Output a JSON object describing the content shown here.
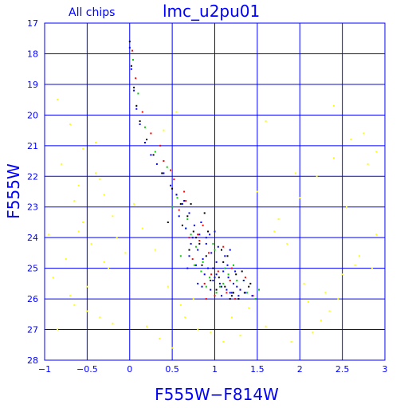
{
  "chart_data": {
    "type": "scatter",
    "title": "lmc_u2pu01",
    "subtitle": "All chips",
    "xlabel": "F555W−F814W",
    "ylabel": "F555W",
    "xlim": [
      -1,
      3
    ],
    "ylim": [
      28,
      17
    ],
    "y_inverted": true,
    "grid": true,
    "x_ticks": [
      -1,
      -0.5,
      0,
      0.5,
      1,
      1.5,
      2,
      2.5,
      3
    ],
    "x_tick_labels": [
      "−1",
      "−0.5",
      "0",
      "0.5",
      "1",
      "1.5",
      "2",
      "2.5",
      "3"
    ],
    "y_ticks": [
      17,
      18,
      19,
      20,
      21,
      22,
      23,
      24,
      25,
      26,
      27,
      28
    ],
    "y_tick_labels": [
      "17",
      "18",
      "19",
      "20",
      "21",
      "22",
      "23",
      "24",
      "25",
      "26",
      "27",
      "28"
    ],
    "colors": {
      "axes": "#0000ff",
      "grid": "#0000ff",
      "chip_yellow": "#ffff00",
      "chip_black": "#000000",
      "chip_red": "#ff0000",
      "chip_green": "#00cc00",
      "chip_blue": "#0000ff"
    },
    "series": [
      {
        "color": "#ffff00",
        "x": [
          -0.85,
          -0.7,
          -0.55,
          -0.4,
          -0.3,
          -0.2,
          -0.6,
          -0.45,
          -0.75,
          -0.25,
          -0.9,
          -0.5,
          -0.35,
          -0.65,
          -0.15,
          -0.8,
          -0.4,
          -0.55,
          -0.3,
          -0.7,
          -0.5,
          -0.2,
          -0.95,
          -0.6,
          0.2,
          0.35,
          0.5,
          0.65,
          0.8,
          1.3,
          1.6,
          1.9,
          2.1,
          2.3,
          2.5,
          2.7,
          2.9,
          1.75,
          2.0,
          2.2,
          2.4,
          2.6,
          2.8,
          1.5,
          1.85,
          2.05,
          2.35,
          2.55,
          2.75,
          1.7,
          2.15,
          2.45,
          2.65,
          2.85,
          1.95,
          2.25,
          0.3,
          0.45,
          0.6,
          1.4,
          1.2,
          0.95,
          0.15,
          0.05,
          -0.05,
          0.4,
          0.55,
          1.6,
          2.4,
          2.9,
          -0.85,
          -0.65,
          -0.35,
          1.1,
          0.75
        ],
        "y": [
          19.5,
          20.3,
          21.1,
          21.9,
          22.6,
          23.3,
          23.8,
          24.2,
          24.7,
          25.0,
          25.3,
          25.6,
          22.1,
          22.8,
          24.0,
          21.6,
          20.9,
          23.5,
          24.8,
          25.9,
          26.4,
          26.8,
          23.9,
          22.3,
          26.9,
          27.3,
          27.6,
          26.6,
          27.0,
          27.2,
          26.9,
          27.4,
          26.1,
          25.8,
          25.2,
          24.6,
          23.9,
          23.4,
          22.7,
          22.0,
          21.4,
          20.8,
          21.6,
          22.5,
          24.2,
          25.5,
          26.4,
          23.0,
          20.6,
          23.8,
          27.1,
          26.0,
          24.9,
          25.0,
          21.9,
          26.7,
          24.4,
          25.6,
          26.2,
          26.3,
          26.6,
          27.1,
          23.7,
          22.9,
          24.5,
          20.5,
          19.9,
          20.2,
          19.7,
          21.2,
          27.0,
          26.2,
          26.6,
          27.4,
          26.0
        ]
      },
      {
        "color": "#000000",
        "x": [
          0.0,
          0.02,
          0.05,
          0.08,
          0.12,
          0.2,
          0.28,
          0.38,
          0.5,
          0.6,
          0.68,
          0.75,
          0.82,
          0.9,
          0.98,
          1.05,
          1.12,
          1.2,
          1.28,
          1.35,
          1.42,
          0.45,
          0.55,
          0.7,
          0.85,
          0.95,
          1.1,
          1.25,
          1.4,
          0.62,
          0.78,
          0.92,
          1.02,
          1.18,
          1.32,
          0.72,
          0.88,
          1.08,
          1.22,
          1.15
        ],
        "y": [
          17.6,
          18.4,
          19.1,
          19.7,
          20.2,
          20.8,
          21.3,
          21.9,
          22.4,
          22.9,
          23.3,
          23.8,
          24.2,
          24.6,
          25.0,
          25.3,
          25.6,
          25.9,
          26.0,
          25.8,
          25.5,
          23.5,
          22.6,
          24.4,
          24.9,
          25.4,
          24.8,
          25.2,
          25.6,
          23.6,
          24.0,
          23.8,
          25.7,
          26.0,
          25.1,
          22.9,
          23.2,
          24.4,
          25.8,
          24.6
        ]
      },
      {
        "color": "#ff0000",
        "x": [
          0.03,
          0.07,
          0.15,
          0.25,
          0.4,
          0.52,
          0.66,
          0.8,
          0.93,
          1.04,
          1.18,
          1.3,
          1.45,
          0.58,
          0.74,
          0.88,
          1.0,
          1.14,
          1.24,
          0.36,
          0.48,
          0.64,
          0.82,
          0.96,
          1.1,
          1.36,
          0.7,
          0.86,
          1.2,
          0.9
        ],
        "y": [
          17.9,
          18.8,
          19.9,
          20.6,
          21.5,
          22.1,
          22.8,
          23.9,
          24.5,
          25.1,
          25.4,
          25.7,
          25.9,
          23.1,
          24.7,
          25.5,
          25.9,
          25.8,
          26.0,
          21.0,
          21.8,
          22.5,
          24.1,
          25.2,
          24.3,
          25.3,
          24.0,
          23.6,
          25.0,
          26.0
        ]
      },
      {
        "color": "#00cc00",
        "x": [
          0.04,
          0.1,
          0.18,
          0.3,
          0.44,
          0.56,
          0.68,
          0.78,
          0.86,
          0.94,
          1.06,
          1.16,
          1.26,
          1.38,
          1.52,
          0.6,
          0.76,
          0.9,
          1.0,
          1.12,
          1.34,
          0.5,
          0.72,
          0.84,
          1.02,
          1.22,
          1.48,
          0.66,
          0.98,
          1.1
        ],
        "y": [
          18.2,
          19.3,
          20.4,
          21.2,
          21.7,
          22.7,
          23.4,
          24.3,
          24.8,
          25.3,
          25.6,
          25.2,
          25.4,
          25.8,
          25.7,
          24.6,
          24.9,
          25.6,
          24.4,
          25.0,
          25.4,
          23.0,
          23.9,
          25.1,
          25.8,
          24.9,
          26.0,
          23.7,
          24.2,
          25.5
        ]
      },
      {
        "color": "#0000ff",
        "x": [
          0.0,
          0.02,
          0.05,
          0.08,
          0.12,
          0.18,
          0.25,
          0.32,
          0.4,
          0.48,
          0.55,
          0.62,
          0.7,
          0.76,
          0.82,
          0.9,
          0.96,
          1.02,
          1.1,
          1.16,
          1.22,
          1.3,
          1.36,
          1.44,
          0.58,
          0.66,
          0.74,
          0.8,
          0.86,
          0.92,
          1.0,
          1.06,
          1.14,
          1.2,
          1.28,
          0.7,
          0.78,
          0.88,
          0.98,
          1.08,
          1.18,
          1.26,
          1.34,
          0.64,
          0.84,
          0.94,
          1.04,
          1.12,
          1.24,
          0.72,
          0.9,
          1.0,
          1.15,
          0.8,
          0.95,
          1.08,
          0.68,
          0.85,
          1.02,
          1.18
        ],
        "y": [
          17.8,
          18.5,
          19.2,
          19.8,
          20.3,
          20.9,
          21.3,
          21.6,
          21.9,
          22.3,
          22.6,
          22.9,
          23.2,
          23.6,
          23.9,
          24.2,
          24.5,
          24.8,
          25.1,
          25.3,
          25.5,
          25.7,
          25.8,
          25.9,
          23.3,
          23.7,
          24.0,
          24.4,
          24.7,
          25.0,
          25.3,
          25.5,
          25.7,
          25.8,
          25.9,
          24.6,
          24.9,
          25.2,
          25.4,
          25.6,
          25.8,
          25.6,
          25.4,
          22.8,
          23.5,
          23.9,
          24.3,
          24.6,
          25.1,
          24.2,
          24.0,
          23.8,
          24.9,
          25.5,
          25.7,
          25.9,
          25.0,
          25.6,
          25.2,
          24.4
        ]
      }
    ]
  }
}
